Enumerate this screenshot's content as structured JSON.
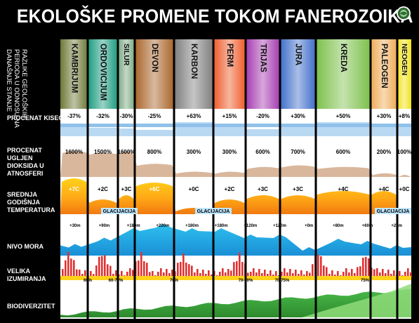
{
  "title": "EKOLOŠKE PROMENE TOKOM FANEROZOIKA",
  "emblem": "globe-emblem-icon",
  "column_label": [
    "RAZLIKE GEOLOŠKIH",
    "PERIODA U ODNOSU NA",
    "DANAŠNJE STANJE"
  ],
  "periods": [
    {
      "name": "KAMBRIJUM",
      "color": "#6e7a38"
    },
    {
      "name": "ORDOVICIJUM",
      "color": "#1a9b7f"
    },
    {
      "name": "SILUR",
      "color": "#7aa882"
    },
    {
      "name": "DEVON",
      "color": "#a9642a"
    },
    {
      "name": "KARBON",
      "color": "#7e7e7e"
    },
    {
      "name": "PERM",
      "color": "#ee5a2a"
    },
    {
      "name": "TRIJAS",
      "color": "#a43bb0"
    },
    {
      "name": "JURA",
      "color": "#3f6ec9"
    },
    {
      "name": "KREDA",
      "color": "#7cc04b"
    },
    {
      "name": "PALEOGEN",
      "color": "#eeaa55"
    },
    {
      "name": "NEOGEN",
      "color": "#f2e21a"
    }
  ],
  "rows": {
    "oxygen": {
      "label": "PROCENAT KISEONIKA U ATNOSFERI",
      "values": [
        "-37%",
        "-32%",
        "-30%",
        "-25%",
        "+63%",
        "+15%",
        "-20%",
        "+30%",
        "+50%",
        "+30%",
        "+8%"
      ]
    },
    "co2": {
      "label": "PROCENAT UGLJEN DIOKSIDA U ATNOSFERI",
      "values": [
        "1600%",
        "1500%",
        "1600%",
        "800%",
        "300%",
        "300%",
        "600%",
        "700%",
        "600%",
        "200%",
        "100%"
      ]
    },
    "temperature": {
      "label": "SREDNJA GODIŠNJA TEMPERATURA",
      "values": [
        "+7C",
        "+2C",
        "+3C",
        "+6C",
        "+0C",
        "+2C",
        "+3C",
        "+3C",
        "+4C",
        "+4C",
        "+0C"
      ],
      "glaciations": [
        "GLACIJACIJA",
        "GLACIJACIJA",
        "GLACIJACIJA"
      ]
    },
    "sea_level": {
      "label": "NIVO MORA",
      "values": [
        "+30m",
        "+90m",
        "+180m",
        "+220m",
        "+180m",
        "+180m",
        "+120m",
        "+120m",
        "+0m",
        "+80m",
        "+60m",
        "+20m"
      ]
    },
    "extinction": {
      "label": "VELIKA IZUMIRANJA",
      "values": [
        "60%",
        "60-70%",
        "70%",
        "70-90%",
        "70-75%",
        "75%"
      ]
    },
    "biodiversity": {
      "label": "BIODIVERZITET"
    }
  }
}
